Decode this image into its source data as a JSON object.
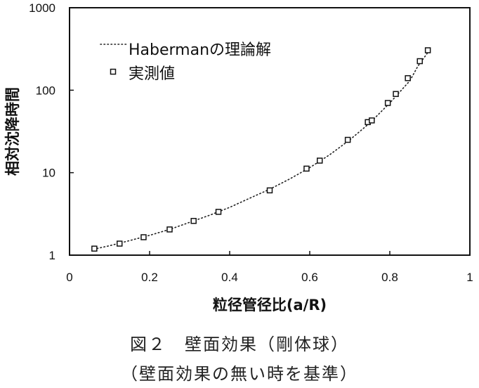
{
  "chart_data": {
    "type": "scatter",
    "xlabel": "粒径管径比(a/R)",
    "ylabel": "相対沈降時間",
    "xlim": [
      0,
      1
    ],
    "ylim": [
      1,
      1000
    ],
    "y_scale": "log",
    "x_ticks": [
      "0",
      "0.2",
      "0.4",
      "0.6",
      "0.8",
      "1"
    ],
    "y_ticks": [
      "1",
      "10",
      "100",
      "1000"
    ],
    "grid": false,
    "legend_position": "top-left",
    "series": [
      {
        "name": "Habermanの理論解",
        "style": "dotted-line",
        "x": [
          0.06,
          0.1,
          0.15,
          0.2,
          0.25,
          0.3,
          0.35,
          0.4,
          0.45,
          0.5,
          0.55,
          0.6,
          0.65,
          0.7,
          0.75,
          0.8,
          0.85,
          0.87,
          0.9
        ],
        "y": [
          1.18,
          1.3,
          1.5,
          1.74,
          2.05,
          2.5,
          3.05,
          3.8,
          4.9,
          6.3,
          8.4,
          11.5,
          16.5,
          25,
          40,
          70,
          130,
          195,
          310
        ]
      },
      {
        "name": "実測値",
        "style": "open-square-marker",
        "x": [
          0.062,
          0.125,
          0.185,
          0.25,
          0.31,
          0.372,
          0.5,
          0.592,
          0.625,
          0.695,
          0.745,
          0.755,
          0.795,
          0.815,
          0.845,
          0.875,
          0.895
        ],
        "y": [
          1.2,
          1.38,
          1.65,
          2.05,
          2.6,
          3.35,
          6.1,
          11.2,
          14,
          25,
          41,
          43,
          70,
          90,
          140,
          225,
          305
        ]
      }
    ]
  },
  "caption": {
    "line1": "図２　壁面効果（剛体球）",
    "line2": "（壁面効果の無い時を基準）"
  }
}
